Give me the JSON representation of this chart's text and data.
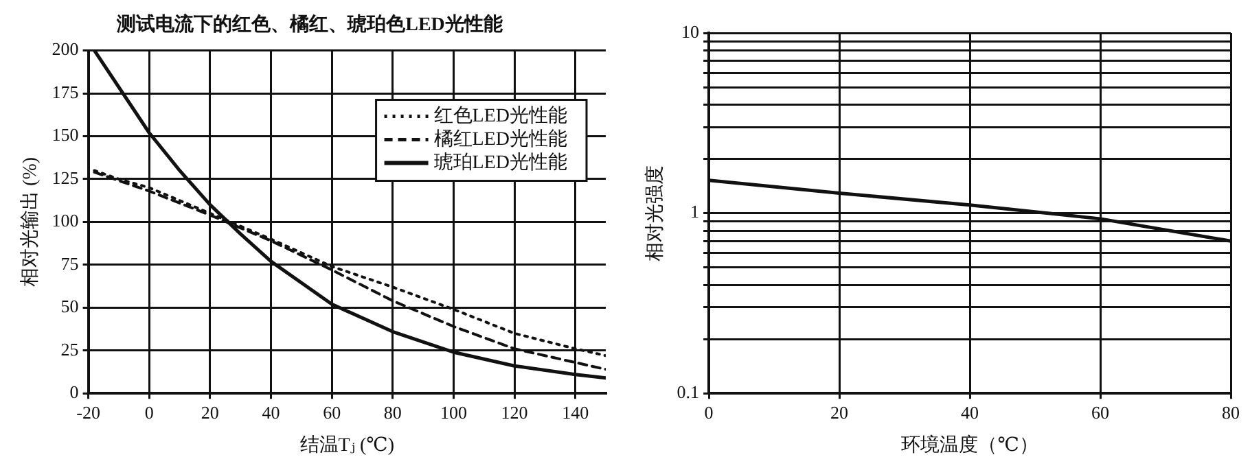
{
  "chart_data": [
    {
      "type": "line",
      "title": "测试电流下的红色、橘红、琥珀色LED光性能",
      "xlabel": "结温Tⱼ (℃)",
      "ylabel": "相对光输出 (%)",
      "xlim": [
        -20,
        150
      ],
      "xticks": [
        -20,
        0,
        20,
        40,
        60,
        80,
        100,
        120,
        140
      ],
      "ylim": [
        0,
        200
      ],
      "yticks": [
        0,
        25,
        50,
        75,
        100,
        125,
        150,
        175,
        200
      ],
      "grid": true,
      "legend": "top right",
      "marker": "none",
      "series": [
        {
          "name": "红色LED光性能",
          "color": "#111111",
          "line_style": "dotted",
          "x": [
            -18,
            -10,
            0,
            20,
            40,
            60,
            80,
            100,
            120,
            140,
            150
          ],
          "values": [
            130,
            125,
            120,
            105,
            90,
            74,
            62,
            49,
            35,
            26,
            22
          ]
        },
        {
          "name": "橘红LED光性能",
          "color": "#111111",
          "line_style": "dashed",
          "x": [
            -18,
            0,
            20,
            40,
            60,
            80,
            100,
            120,
            140,
            150
          ],
          "values": [
            129,
            118,
            104,
            89,
            72,
            54,
            39,
            26,
            18,
            14
          ]
        },
        {
          "name": "琥珀LED光性能",
          "color": "#111111",
          "line_style": "solid",
          "x": [
            -18,
            0,
            10,
            20,
            30,
            40,
            60,
            80,
            100,
            120,
            140,
            150
          ],
          "values": [
            200,
            152,
            130,
            110,
            93,
            77,
            52,
            36,
            24,
            16,
            11,
            9
          ]
        }
      ]
    },
    {
      "type": "line",
      "xlabel": "环境温度（℃）",
      "ylabel": "相对光强度",
      "log": true,
      "xlim": [
        0,
        80
      ],
      "xticks": [
        0,
        20,
        40,
        60,
        80
      ],
      "ylim": [
        0.1,
        10
      ],
      "yticks": [
        0.1,
        {
          "value": 0.2,
          "label": null
        },
        {
          "value": 0.3,
          "label": null
        },
        {
          "value": 0.4,
          "label": null
        },
        {
          "value": 0.5,
          "label": null
        },
        {
          "value": 0.6,
          "label": null
        },
        {
          "value": 0.7,
          "label": null
        },
        {
          "value": 0.8,
          "label": null
        },
        {
          "value": 0.9,
          "label": null
        },
        1,
        {
          "value": 2,
          "label": null
        },
        {
          "value": 3,
          "label": null
        },
        {
          "value": 4,
          "label": null
        },
        {
          "value": 5,
          "label": null
        },
        {
          "value": 6,
          "label": null
        },
        {
          "value": 7,
          "label": null
        },
        {
          "value": 8,
          "label": null
        },
        {
          "value": 9,
          "label": null
        },
        10
      ],
      "grid": true,
      "marker": "none",
      "series": [
        {
          "color": "#111111",
          "line_style": "solid",
          "x": [
            0,
            20,
            40,
            60,
            80
          ],
          "values": [
            1.52,
            1.29,
            1.11,
            0.93,
            0.7
          ]
        }
      ]
    }
  ]
}
